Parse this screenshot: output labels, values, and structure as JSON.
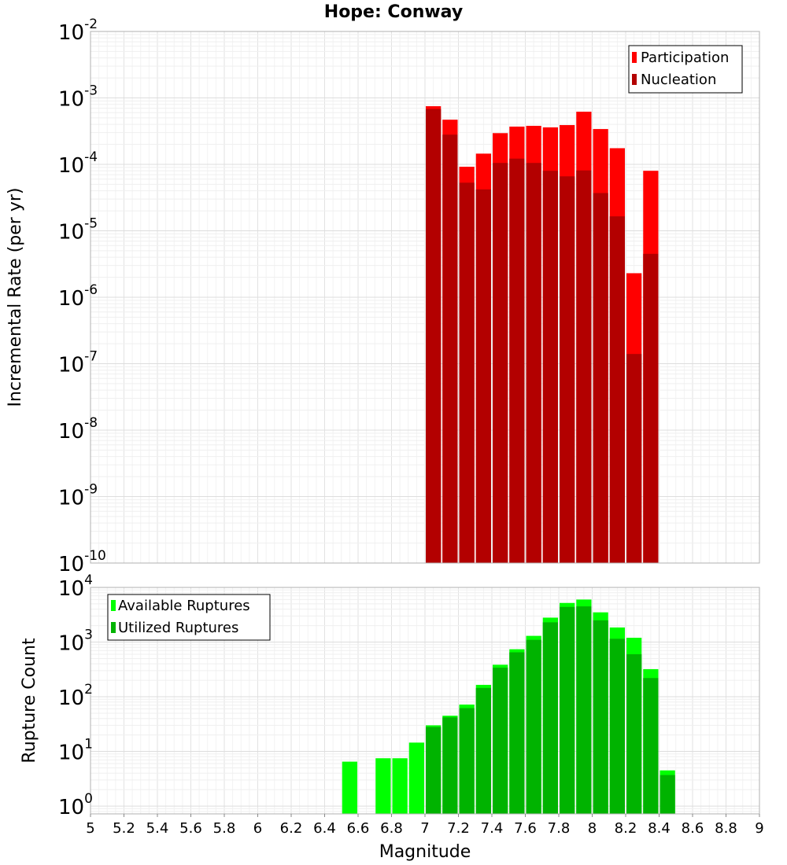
{
  "title": "Hope: Conway",
  "chart_data": [
    {
      "type": "bar",
      "name": "rate-panel",
      "ylabel": "Incremental Rate (per yr)",
      "xlabel": "Magnitude",
      "xlim": [
        5,
        9
      ],
      "ylim": [
        1e-10,
        0.01
      ],
      "yscale": "log",
      "grid": true,
      "legend_position": "top-right",
      "bin_width": 0.1,
      "series": [
        {
          "name": "Participation",
          "color": "#ff0000",
          "x": [
            7.05,
            7.15,
            7.25,
            7.35,
            7.45,
            7.55,
            7.65,
            7.75,
            7.85,
            7.95,
            8.05,
            8.15,
            8.25,
            8.35
          ],
          "values": [
            0.00075,
            0.00047,
            9.2e-05,
            0.000145,
            0.000295,
            0.00037,
            0.00038,
            0.00036,
            0.00039,
            0.00062,
            0.00034,
            0.000175,
            2.3e-06,
            8e-05
          ]
        },
        {
          "name": "Nucleation",
          "color": "#b30000",
          "x": [
            7.05,
            7.15,
            7.25,
            7.35,
            7.45,
            7.55,
            7.65,
            7.75,
            7.85,
            7.95,
            8.05,
            8.15,
            8.25,
            8.35
          ],
          "values": [
            0.00068,
            0.00028,
            5.3e-05,
            4.2e-05,
            0.000105,
            0.000122,
            0.000105,
            8e-05,
            6.6e-05,
            8.1e-05,
            3.7e-05,
            1.65e-05,
            1.4e-07,
            4.5e-06
          ]
        }
      ],
      "y_ticks": [
        {
          "base": "10",
          "exp": "-2"
        },
        {
          "base": "10",
          "exp": "-3"
        },
        {
          "base": "10",
          "exp": "-4"
        },
        {
          "base": "10",
          "exp": "-5"
        },
        {
          "base": "10",
          "exp": "-6"
        },
        {
          "base": "10",
          "exp": "-7"
        },
        {
          "base": "10",
          "exp": "-8"
        },
        {
          "base": "10",
          "exp": "-9"
        },
        {
          "base": "10",
          "exp": "-10"
        }
      ]
    },
    {
      "type": "bar",
      "name": "count-panel",
      "ylabel": "Rupture Count",
      "xlabel": "Magnitude",
      "xlim": [
        5,
        9
      ],
      "ylim": [
        0.72,
        10000
      ],
      "yscale": "log",
      "grid": true,
      "legend_position": "top-left",
      "bin_width": 0.1,
      "series": [
        {
          "name": "Available Ruptures",
          "color": "#00ff00",
          "x": [
            6.55,
            6.75,
            6.85,
            6.95,
            7.05,
            7.15,
            7.25,
            7.35,
            7.45,
            7.55,
            7.65,
            7.75,
            7.85,
            7.95,
            8.05,
            8.15,
            8.25,
            8.35,
            8.45
          ],
          "values": [
            6.5,
            7.5,
            7.5,
            14.5,
            30,
            45,
            72,
            165,
            385,
            740,
            1300,
            2800,
            5200,
            6000,
            3500,
            1850,
            1200,
            320,
            4.5
          ]
        },
        {
          "name": "Utilized Ruptures",
          "color": "#00b300",
          "x": [
            6.55,
            6.75,
            6.85,
            6.95,
            7.05,
            7.15,
            7.25,
            7.35,
            7.45,
            7.55,
            7.65,
            7.75,
            7.85,
            7.95,
            8.05,
            8.15,
            8.25,
            8.35,
            8.45
          ],
          "values": [
            0,
            0,
            0,
            0,
            28,
            42,
            62,
            145,
            340,
            650,
            1100,
            2300,
            4400,
            4500,
            2500,
            1150,
            600,
            220,
            3.7
          ]
        }
      ],
      "y_ticks": [
        {
          "base": "10",
          "exp": "4"
        },
        {
          "base": "10",
          "exp": "3"
        },
        {
          "base": "10",
          "exp": "2"
        },
        {
          "base": "10",
          "exp": "1"
        },
        {
          "base": "10",
          "exp": "0"
        }
      ]
    }
  ],
  "x_tick_labels": [
    "5",
    "5.2",
    "5.4",
    "5.6",
    "5.8",
    "6",
    "6.2",
    "6.4",
    "6.6",
    "6.8",
    "7",
    "7.2",
    "7.4",
    "7.6",
    "7.8",
    "8",
    "8.2",
    "8.4",
    "8.6",
    "8.8",
    "9"
  ]
}
